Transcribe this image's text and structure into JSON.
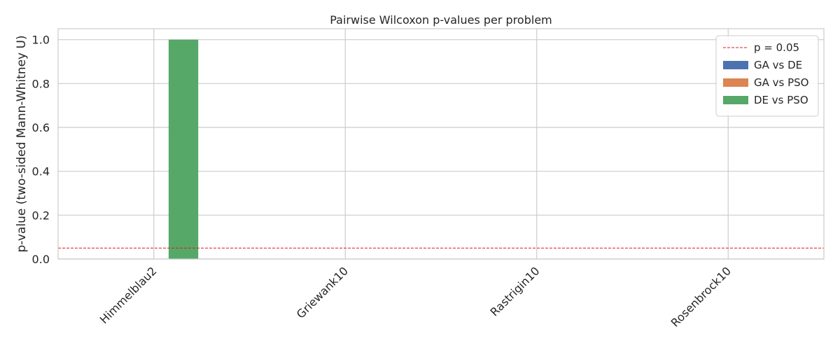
{
  "chart_data": {
    "type": "bar",
    "title": "Pairwise Wilcoxon p-values per problem",
    "xlabel": "",
    "ylabel": "p-value (two-sided Mann-Whitney U)",
    "categories": [
      "Himmelblau2",
      "Griewank10",
      "Rastrigin10",
      "Rosenbrock10"
    ],
    "series": [
      {
        "name": "GA vs DE",
        "color": "#4c72b0",
        "values": [
          0.0,
          0.0,
          0.0,
          0.0
        ]
      },
      {
        "name": "GA vs PSO",
        "color": "#dd8452",
        "values": [
          0.0,
          0.0,
          0.0,
          0.0
        ]
      },
      {
        "name": "DE vs PSO",
        "color": "#55a868",
        "values": [
          1.0,
          0.0,
          0.0,
          0.0
        ]
      }
    ],
    "reference_line": {
      "label": "p = 0.05",
      "value": 0.05,
      "color": "#e31a1c"
    },
    "ylim": [
      0,
      1.05
    ],
    "yticks": [
      0.0,
      0.2,
      0.4,
      0.6,
      0.8,
      1.0
    ],
    "ytick_labels": [
      "0.0",
      "0.2",
      "0.4",
      "0.6",
      "0.8",
      "1.0"
    ],
    "grid": true,
    "legend_position": "top-right"
  }
}
